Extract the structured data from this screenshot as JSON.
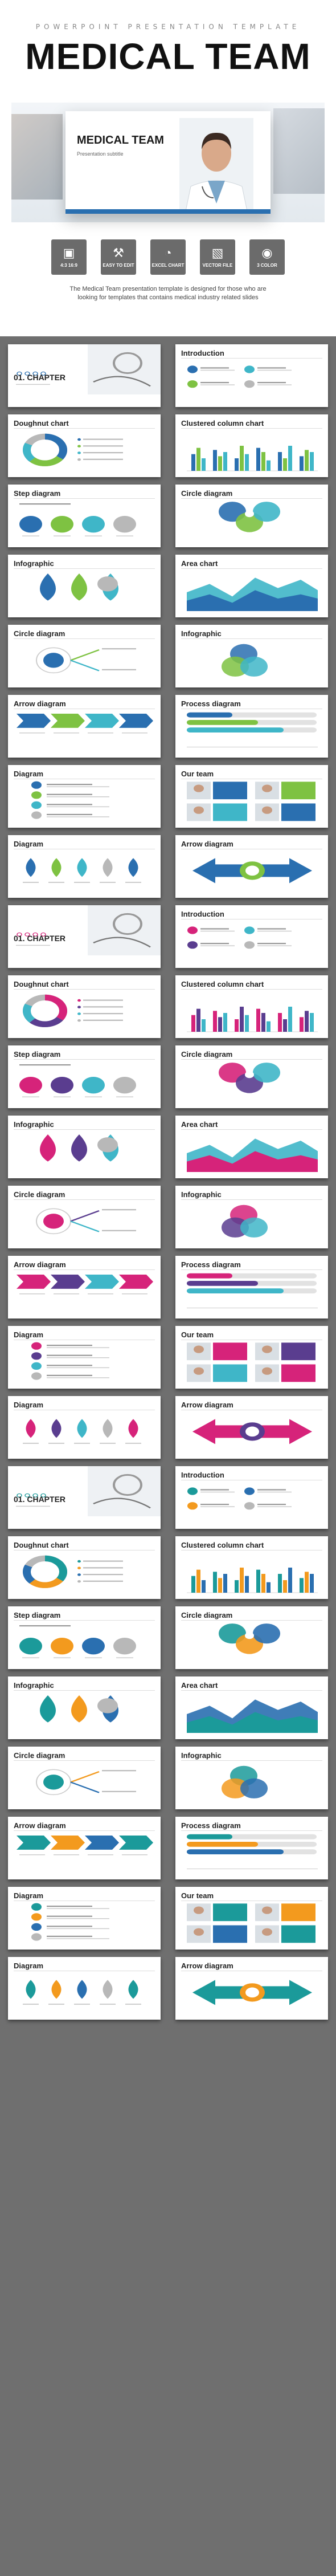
{
  "header": {
    "kicker": "POWERPOINT PRESENTATION TEMPLATE",
    "title": "MEDICAL TEAM"
  },
  "cover": {
    "title": "MEDICAL TEAM",
    "subtitle": "Presentation subtitle"
  },
  "features": [
    {
      "icon": "presentation-icon",
      "glyph": "▣",
      "label": "4:3 16:9"
    },
    {
      "icon": "tools-icon",
      "glyph": "⚒",
      "label": "EASY TO EDIT"
    },
    {
      "icon": "pie-chart-icon",
      "glyph": "◔",
      "label": "EXCEL CHART"
    },
    {
      "icon": "image-icon",
      "glyph": "▧",
      "label": "VECTOR FILE"
    },
    {
      "icon": "palette-icon",
      "glyph": "◉",
      "label": "3 COLOR"
    }
  ],
  "description": "The Medical Team presentation template is designed for those who are looking for templates that contains medical industry related slides",
  "palettes": [
    {
      "name": "blue-green",
      "a": "#2a6fb0",
      "b": "#7ec242",
      "c": "#3fb6c8"
    },
    {
      "name": "magenta-purple",
      "a": "#d6237a",
      "b": "#5a3d8f",
      "c": "#3fb6c8"
    },
    {
      "name": "teal-orange",
      "a": "#1b9a9a",
      "b": "#f39a1e",
      "c": "#2a6fb0"
    }
  ],
  "slides": [
    {
      "title": "",
      "kind": "chapter",
      "chapter": "01. CHAPTER",
      "palette": 0
    },
    {
      "title": "Introduction",
      "kind": "intro",
      "palette": 0
    },
    {
      "title": "Doughnut chart",
      "kind": "doughnut",
      "palette": 0
    },
    {
      "title": "Clustered column chart",
      "kind": "columns",
      "palette": 0
    },
    {
      "title": "Step diagram",
      "kind": "steps",
      "palette": 0
    },
    {
      "title": "Circle diagram",
      "kind": "circles",
      "palette": 0
    },
    {
      "title": "Infographic",
      "kind": "drops",
      "palette": 0
    },
    {
      "title": "Area chart",
      "kind": "area",
      "palette": 0
    },
    {
      "title": "Circle diagram",
      "kind": "circles2",
      "palette": 0
    },
    {
      "title": "Infographic",
      "kind": "venn",
      "palette": 0
    },
    {
      "title": "Arrow diagram",
      "kind": "arrows",
      "palette": 0
    },
    {
      "title": "Process diagram",
      "kind": "process",
      "palette": 0
    },
    {
      "title": "Diagram",
      "kind": "list",
      "palette": 0
    },
    {
      "title": "Our team",
      "kind": "team",
      "palette": 0
    },
    {
      "title": "Diagram",
      "kind": "pins",
      "palette": 0
    },
    {
      "title": "Arrow diagram",
      "kind": "bigarrow",
      "palette": 0
    },
    {
      "title": "",
      "kind": "chapter",
      "chapter": "01. CHAPTER",
      "palette": 1
    },
    {
      "title": "Introduction",
      "kind": "intro",
      "palette": 1
    },
    {
      "title": "Doughnut chart",
      "kind": "doughnut",
      "palette": 1
    },
    {
      "title": "Clustered column chart",
      "kind": "columns",
      "palette": 1
    },
    {
      "title": "Step diagram",
      "kind": "steps",
      "palette": 1
    },
    {
      "title": "Circle diagram",
      "kind": "circles",
      "palette": 1
    },
    {
      "title": "Infographic",
      "kind": "drops",
      "palette": 1
    },
    {
      "title": "Area chart",
      "kind": "area",
      "palette": 1
    },
    {
      "title": "Circle diagram",
      "kind": "circles2",
      "palette": 1
    },
    {
      "title": "Infographic",
      "kind": "venn",
      "palette": 1
    },
    {
      "title": "Arrow diagram",
      "kind": "arrows",
      "palette": 1
    },
    {
      "title": "Process diagram",
      "kind": "process",
      "palette": 1
    },
    {
      "title": "Diagram",
      "kind": "list",
      "palette": 1
    },
    {
      "title": "Our team",
      "kind": "team",
      "palette": 1
    },
    {
      "title": "Diagram",
      "kind": "pins",
      "palette": 1
    },
    {
      "title": "Arrow diagram",
      "kind": "bigarrow",
      "palette": 1
    },
    {
      "title": "",
      "kind": "chapter",
      "chapter": "01. CHAPTER",
      "palette": 2
    },
    {
      "title": "Introduction",
      "kind": "intro",
      "palette": 2
    },
    {
      "title": "Doughnut chart",
      "kind": "doughnut",
      "palette": 2
    },
    {
      "title": "Clustered column chart",
      "kind": "columns",
      "palette": 2
    },
    {
      "title": "Step diagram",
      "kind": "steps",
      "palette": 2
    },
    {
      "title": "Circle diagram",
      "kind": "circles",
      "palette": 2
    },
    {
      "title": "Infographic",
      "kind": "drops",
      "palette": 2
    },
    {
      "title": "Area chart",
      "kind": "area",
      "palette": 2
    },
    {
      "title": "Circle diagram",
      "kind": "circles2",
      "palette": 2
    },
    {
      "title": "Infographic",
      "kind": "venn",
      "palette": 2
    },
    {
      "title": "Arrow diagram",
      "kind": "arrows",
      "palette": 2
    },
    {
      "title": "Process diagram",
      "kind": "process",
      "palette": 2
    },
    {
      "title": "Diagram",
      "kind": "list",
      "palette": 2
    },
    {
      "title": "Our team",
      "kind": "team",
      "palette": 2
    },
    {
      "title": "Diagram",
      "kind": "pins",
      "palette": 2
    },
    {
      "title": "Arrow diagram",
      "kind": "bigarrow",
      "palette": 2
    }
  ]
}
